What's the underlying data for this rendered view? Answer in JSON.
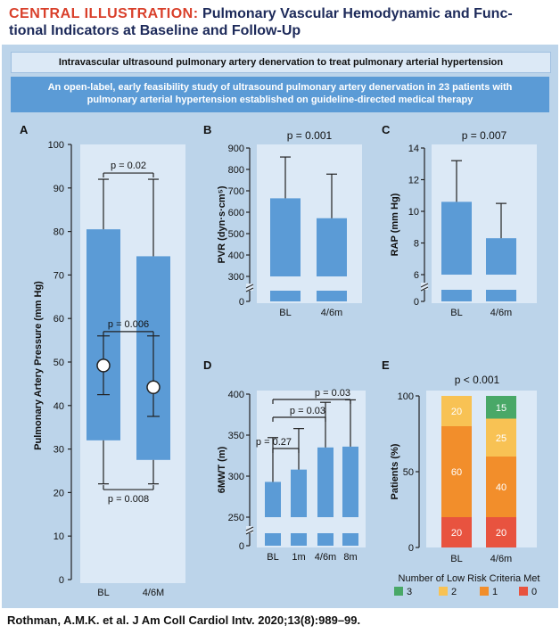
{
  "header": {
    "label": "CENTRAL ILLUSTRATION:",
    "title": "Pulmonary Vascular Hemodynamic and Func-tional Indicators at Baseline and Follow-Up"
  },
  "banner1": "Intravascular ultrasound pulmonary artery denervation to treat pulmonary arterial hypertension",
  "banner2_line1": "An open-label, early feasibility study of ultrasound pulmonary artery denervation in 23 patients with",
  "banner2_line2": "pulmonary arterial hypertension established on guideline-directed medical therapy",
  "citation": "Rothman, A.M.K. et al. J Am Coll Cardiol Intv. 2020;13(8):989–99.",
  "colors": {
    "bar": "#5b9bd6",
    "panel_bg": "#dce9f6",
    "outer_bg": "#bcd4ea",
    "title_red": "#d9402b",
    "title_navy": "#1d2a5a",
    "risk3": "#49a867",
    "risk2": "#f8c254",
    "risk1": "#f28e2b",
    "risk0": "#e8533f"
  },
  "chart_data": [
    {
      "panel": "A",
      "type": "box",
      "ylabel": "Pulmonary Artery Pressure (mm Hg)",
      "ylim": [
        0,
        100
      ],
      "yticks": [
        0,
        10,
        20,
        30,
        40,
        50,
        60,
        70,
        80,
        90,
        100
      ],
      "categories": [
        "BL",
        "4/6M"
      ],
      "boxes": [
        {
          "whisker_low": 22,
          "bar_low": 32,
          "bar_high": 80.5,
          "whisker_high": 92,
          "mean": 49.2,
          "err_low": 42.5,
          "err_high": 56
        },
        {
          "whisker_low": 22,
          "bar_low": 27.5,
          "bar_high": 74.3,
          "whisker_high": 92,
          "mean": 44.2,
          "err_low": 37.5,
          "err_high": 56
        }
      ],
      "annotations": [
        {
          "text": "p = 0.02",
          "value": 95
        },
        {
          "text": "p = 0.006",
          "value": 58
        },
        {
          "text": "p = 0.008",
          "value": 20
        }
      ]
    },
    {
      "panel": "B",
      "type": "bar",
      "title": "p = 0.001",
      "ylabel": "PVR (dyn·s·cm⁵)",
      "yticks": [
        0,
        300,
        400,
        500,
        600,
        700,
        800,
        900
      ],
      "categories": [
        "BL",
        "4/6m"
      ],
      "values": [
        665,
        572
      ],
      "error_high": [
        858,
        778
      ]
    },
    {
      "panel": "C",
      "type": "bar",
      "title": "p = 0.007",
      "ylabel": "RAP (mm Hg)",
      "yticks": [
        0,
        6,
        8,
        10,
        12,
        14
      ],
      "categories": [
        "BL",
        "4/6m"
      ],
      "values": [
        10.6,
        8.3
      ],
      "error_high": [
        13.2,
        10.5
      ]
    },
    {
      "panel": "D",
      "type": "bar",
      "ylabel": "6MWT (m)",
      "yticks": [
        0,
        250,
        300,
        350,
        400
      ],
      "categories": [
        "BL",
        "1m",
        "4/6m",
        "8m"
      ],
      "values": [
        293,
        308,
        335,
        336
      ],
      "error_high": [
        347,
        358,
        390,
        393
      ],
      "annotations": [
        "p = 0.27",
        "p = 0.03",
        "p = 0.03"
      ]
    },
    {
      "panel": "E",
      "type": "stacked_bar",
      "title": "p < 0.001",
      "ylabel": "Patients (%)",
      "ylim": [
        0,
        100
      ],
      "yticks": [
        0,
        50,
        100
      ],
      "categories": [
        "BL",
        "4/6m"
      ],
      "series": [
        {
          "name": "0",
          "values": [
            20,
            20
          ]
        },
        {
          "name": "1",
          "values": [
            60,
            40
          ]
        },
        {
          "name": "2",
          "values": [
            20,
            25
          ]
        },
        {
          "name": "3",
          "values": [
            0,
            15
          ]
        }
      ],
      "legend_title": "Number of Low Risk Criteria Met",
      "legend": [
        "3",
        "2",
        "1",
        "0"
      ]
    }
  ]
}
